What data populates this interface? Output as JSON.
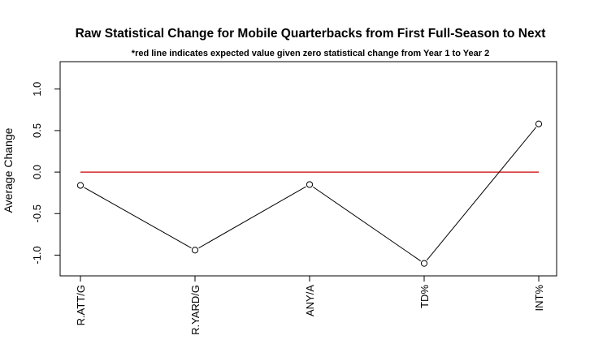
{
  "chart_data": {
    "type": "line",
    "title": "Raw Statistical Change for Mobile Quarterbacks from First Full-Season to Next",
    "subtitle": "*red line indicates expected value given zero statistical change from Year 1 to Year 2",
    "xlabel": "",
    "ylabel": "Average Change",
    "categories": [
      "R.ATT/G",
      "R.YARD/G",
      "ANY/A",
      "TD%",
      "INT%"
    ],
    "values": [
      -0.16,
      -0.94,
      -0.15,
      -1.1,
      0.58
    ],
    "ylim": [
      -1.25,
      1.33
    ],
    "yticks": [
      -1.0,
      -0.5,
      0.0,
      0.5,
      1.0
    ],
    "ytick_labels": [
      "-1.0",
      "-0.5",
      "0.0",
      "0.5",
      "1.0"
    ],
    "reference_line": {
      "y": 0,
      "color": "#cc0000"
    },
    "line_color": "#000000",
    "marker": "open-circle",
    "grid": false,
    "legend": "none"
  }
}
